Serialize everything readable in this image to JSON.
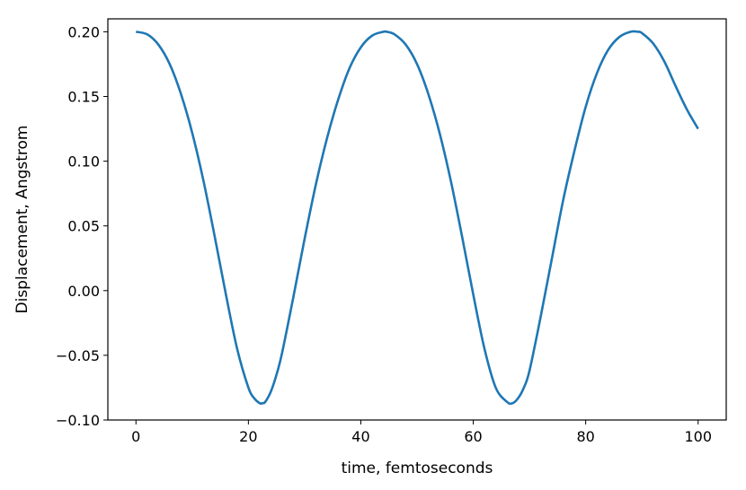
{
  "chart_data": {
    "type": "line",
    "title": "",
    "xlabel": "time, femtoseconds",
    "ylabel": "Displacement, Angstrom",
    "xlim": [
      -5,
      105
    ],
    "ylim": [
      -0.1,
      0.21
    ],
    "xticks": [
      0,
      20,
      40,
      60,
      80,
      100
    ],
    "xtick_labels": [
      "0",
      "20",
      "40",
      "60",
      "80",
      "100"
    ],
    "yticks": [
      -0.1,
      -0.05,
      0.0,
      0.05,
      0.1,
      0.15,
      0.2
    ],
    "ytick_labels": [
      "−0.10",
      "−0.05",
      "0.00",
      "0.05",
      "0.10",
      "0.15",
      "0.20"
    ],
    "grid": false,
    "series": [
      {
        "color": "#1f77b4",
        "x": [
          0,
          2,
          4,
          6,
          8,
          10,
          12,
          14,
          16,
          18,
          20,
          21,
          22,
          22.5,
          23,
          24,
          25,
          26,
          28,
          30,
          32,
          34,
          36,
          38,
          40,
          42,
          44,
          44.6,
          46,
          48,
          50,
          52,
          54,
          56,
          58,
          60,
          62,
          64,
          66,
          67,
          68,
          69,
          70,
          72,
          74,
          76,
          78,
          80,
          82,
          84,
          86,
          88,
          89.3,
          90,
          92,
          94,
          96,
          98,
          100
        ],
        "y": [
          0.2,
          0.198,
          0.19,
          0.175,
          0.152,
          0.122,
          0.085,
          0.042,
          -0.003,
          -0.045,
          -0.075,
          -0.083,
          -0.087,
          -0.087,
          -0.086,
          -0.078,
          -0.065,
          -0.048,
          -0.005,
          0.04,
          0.082,
          0.118,
          0.148,
          0.172,
          0.188,
          0.197,
          0.2,
          0.2,
          0.198,
          0.19,
          0.175,
          0.152,
          0.122,
          0.085,
          0.042,
          -0.003,
          -0.045,
          -0.075,
          -0.086,
          -0.087,
          -0.083,
          -0.075,
          -0.062,
          -0.02,
          0.025,
          0.07,
          0.108,
          0.142,
          0.168,
          0.186,
          0.196,
          0.2,
          0.2,
          0.199,
          0.191,
          0.177,
          0.158,
          0.14,
          0.125
        ]
      }
    ]
  }
}
